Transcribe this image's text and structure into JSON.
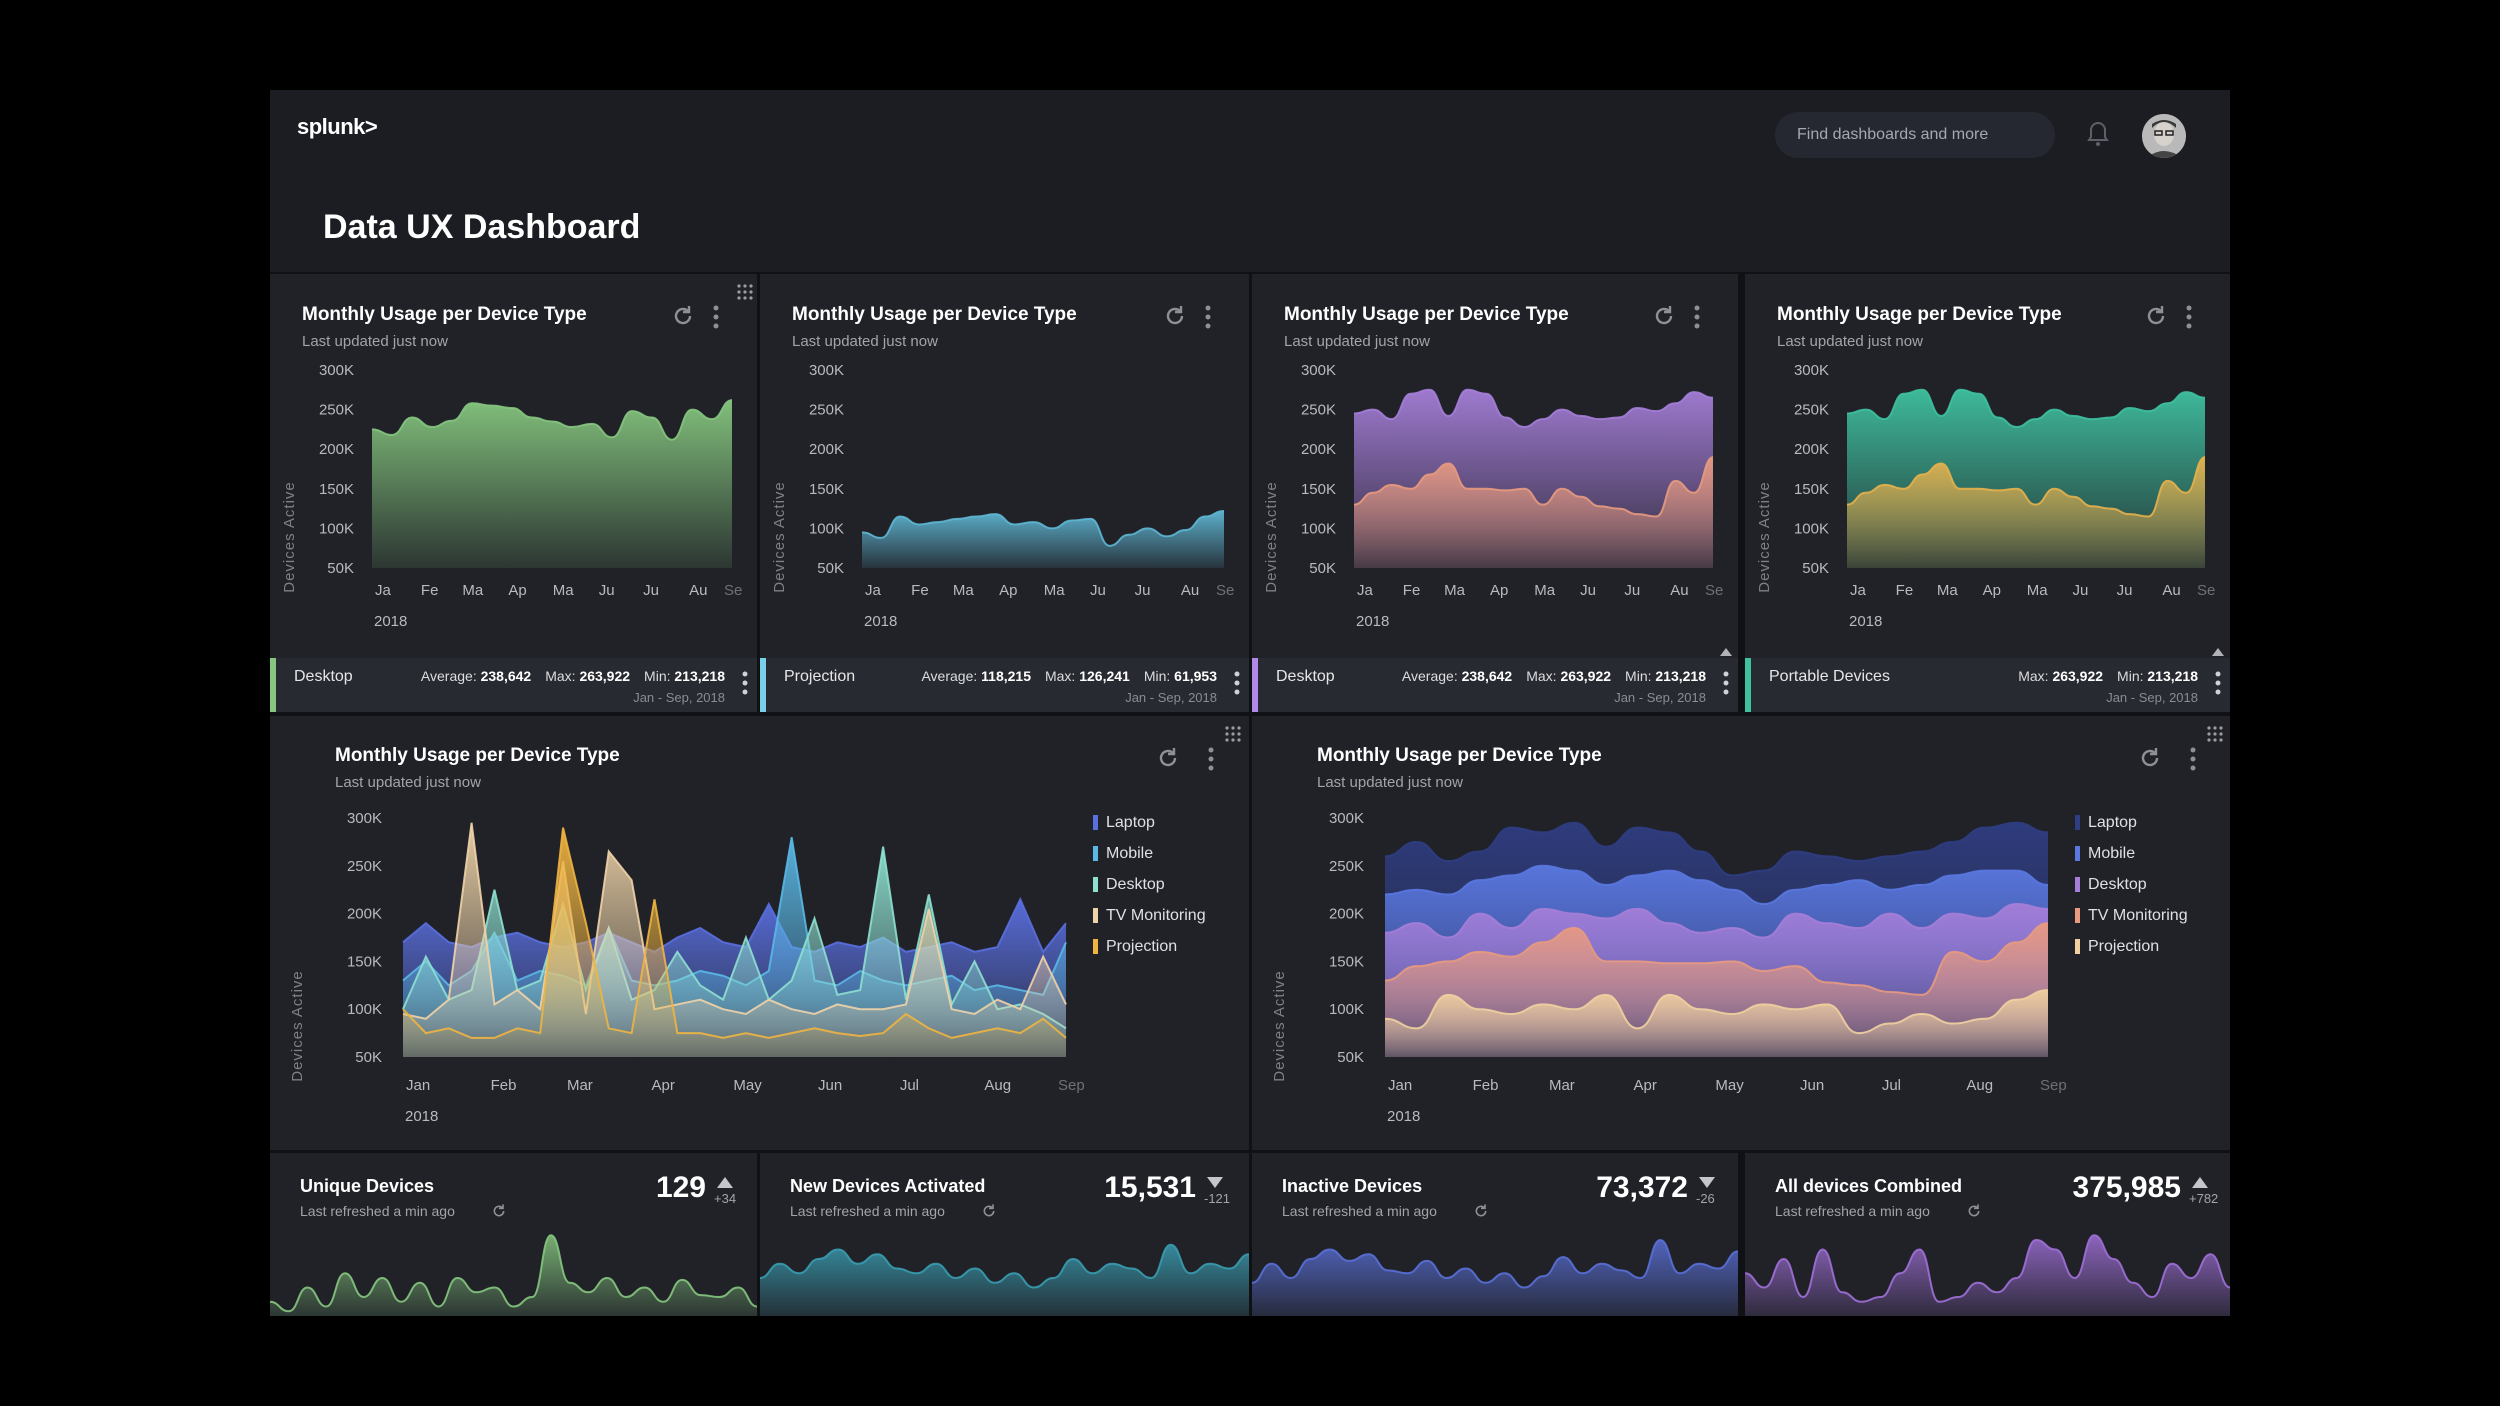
{
  "header": {
    "logo": "splunk>",
    "search_placeholder": "Find dashboards and more",
    "title": "Data UX Dashboard"
  },
  "axis": {
    "ylabel": "Devices Active",
    "yticks": [
      "300K",
      "250K",
      "200K",
      "150K",
      "100K",
      "50K"
    ],
    "ytick_values": [
      300,
      250,
      200,
      150,
      100,
      50
    ],
    "xticks_short": [
      "Ja",
      "Fe",
      "Ma",
      "Ap",
      "Ma",
      "Ju",
      "Ju",
      "Au",
      "Se"
    ],
    "xticks_long": [
      "Jan",
      "Feb",
      "Mar",
      "Apr",
      "May",
      "Jun",
      "Jul",
      "Aug",
      "Sep"
    ],
    "year": "2018"
  },
  "panels_top": [
    {
      "title": "Monthly Usage per Device Type",
      "subtitle": "Last updated just now",
      "footer": {
        "label": "Desktop",
        "color": "#86c77f",
        "stats": [
          {
            "label": "Average:",
            "value": "238,642"
          },
          {
            "label": "Max:",
            "value": "263,922"
          },
          {
            "label": "Min:",
            "value": "213,218"
          }
        ],
        "range": "Jan - Sep, 2018"
      }
    },
    {
      "title": "Monthly Usage per Device Type",
      "subtitle": "Last updated just now",
      "footer": {
        "label": "Projection",
        "color": "#7ad0e8",
        "stats": [
          {
            "label": "Average:",
            "value": "118,215"
          },
          {
            "label": "Max:",
            "value": "126,241"
          },
          {
            "label": "Min:",
            "value": "61,953"
          }
        ],
        "range": "Jan - Sep, 2018"
      }
    },
    {
      "title": "Monthly Usage per Device Type",
      "subtitle": "Last updated just now",
      "footer": {
        "label": "Desktop",
        "color": "#b08ae8",
        "stats": [
          {
            "label": "Average:",
            "value": "238,642"
          },
          {
            "label": "Max:",
            "value": "263,922"
          },
          {
            "label": "Min:",
            "value": "213,218"
          }
        ],
        "range": "Jan - Sep, 2018"
      }
    },
    {
      "title": "Monthly Usage per Device Type",
      "subtitle": "Last updated just now",
      "footer": {
        "label": "Portable Devices",
        "color": "#3fc1a0",
        "stats": [
          {
            "label": "Max:",
            "value": "263,922"
          },
          {
            "label": "Min:",
            "value": "213,218"
          }
        ],
        "range": "Jan - Sep, 2018"
      }
    }
  ],
  "panels_mid": [
    {
      "title": "Monthly Usage per Device Type",
      "subtitle": "Last updated just now"
    },
    {
      "title": "Monthly Usage per Device Type",
      "subtitle": "Last updated just now"
    }
  ],
  "kpis": [
    {
      "title": "Unique Devices",
      "subtitle": "Last refreshed a min ago",
      "value": "129",
      "delta": "+34",
      "direction": "up",
      "color": "#86c77f"
    },
    {
      "title": "New Devices Activated",
      "subtitle": "Last refreshed a min ago",
      "value": "15,531",
      "delta": "-121",
      "direction": "down",
      "color": "#3a9cb0"
    },
    {
      "title": "Inactive Devices",
      "subtitle": "Last refreshed a min ago",
      "value": "73,372",
      "delta": "-26",
      "direction": "down",
      "color": "#5a70d8"
    },
    {
      "title": "All devices Combined",
      "subtitle": "Last refreshed a min ago",
      "value": "375,985",
      "delta": "+782",
      "direction": "up",
      "color": "#a070d8"
    }
  ],
  "chart_data": [
    {
      "type": "area",
      "ylabel": "Devices Active",
      "ylim": [
        50,
        300
      ],
      "x": "Jan - Sep 2018",
      "series": [
        {
          "color": "#86c77f",
          "values": [
            225,
            218,
            240,
            228,
            236,
            258,
            255,
            252,
            240,
            235,
            228,
            232,
            215,
            248,
            240,
            212,
            250,
            238,
            262
          ]
        }
      ]
    },
    {
      "type": "area",
      "ylabel": "Devices Active",
      "ylim": [
        50,
        300
      ],
      "x": "Jan - Sep 2018",
      "series": [
        {
          "color": "#5fb7d4",
          "values": [
            95,
            88,
            115,
            105,
            108,
            112,
            115,
            118,
            105,
            108,
            100,
            110,
            112,
            78,
            92,
            100,
            90,
            98,
            115,
            122
          ]
        }
      ]
    },
    {
      "type": "area",
      "ylabel": "Devices Active",
      "ylim": [
        50,
        300
      ],
      "x": "Jan - Sep 2018",
      "series": [
        {
          "color": "#a57ed8",
          "values": [
            245,
            250,
            238,
            270,
            275,
            242,
            275,
            270,
            240,
            228,
            238,
            250,
            242,
            238,
            240,
            252,
            248,
            258,
            272,
            265
          ]
        },
        {
          "color": "#e89a80",
          "values": [
            130,
            145,
            155,
            150,
            168,
            182,
            150,
            150,
            148,
            150,
            130,
            150,
            140,
            128,
            125,
            118,
            115,
            160,
            145,
            190
          ]
        }
      ]
    },
    {
      "type": "area",
      "ylabel": "Devices Active",
      "ylim": [
        50,
        300
      ],
      "x": "Jan - Sep 2018",
      "series": [
        {
          "color": "#3fc1a0",
          "values": [
            245,
            250,
            238,
            270,
            275,
            242,
            275,
            270,
            240,
            228,
            238,
            250,
            242,
            238,
            240,
            252,
            248,
            258,
            272,
            265
          ]
        },
        {
          "color": "#e6b14d",
          "values": [
            130,
            145,
            155,
            150,
            168,
            182,
            150,
            150,
            148,
            150,
            130,
            150,
            140,
            128,
            125,
            118,
            115,
            160,
            145,
            190
          ]
        }
      ]
    },
    {
      "type": "area",
      "ylabel": "Devices Active",
      "ylim": [
        50,
        300
      ],
      "legend": "right",
      "series": [
        {
          "name": "Laptop",
          "color": "#5a6fe0",
          "values": [
            170,
            190,
            170,
            165,
            175,
            180,
            170,
            165,
            170,
            180,
            170,
            160,
            175,
            185,
            170,
            165,
            210,
            165,
            160,
            170,
            165,
            175,
            160,
            165,
            170,
            160,
            165,
            215,
            160,
            190
          ]
        },
        {
          "name": "Mobile",
          "color": "#5ab8e6",
          "values": [
            130,
            150,
            125,
            140,
            180,
            130,
            140,
            135,
            125,
            185,
            130,
            125,
            130,
            140,
            135,
            125,
            140,
            280,
            130,
            125,
            140,
            130,
            125,
            130,
            135,
            120,
            125,
            120,
            115,
            170
          ]
        },
        {
          "name": "Desktop",
          "color": "#8ee0d0",
          "values": [
            100,
            155,
            110,
            120,
            225,
            120,
            130,
            210,
            120,
            185,
            110,
            120,
            160,
            125,
            110,
            175,
            110,
            130,
            195,
            115,
            120,
            270,
            110,
            220,
            105,
            150,
            100,
            105,
            95,
            80
          ]
        },
        {
          "name": "TV Monitoring",
          "color": "#efd3a8",
          "values": [
            95,
            90,
            110,
            295,
            105,
            120,
            100,
            255,
            95,
            265,
            235,
            100,
            105,
            110,
            100,
            95,
            110,
            100,
            95,
            105,
            100,
            100,
            105,
            205,
            100,
            95,
            110,
            100,
            155,
            105
          ]
        },
        {
          "name": "Projection",
          "color": "#f0b440",
          "values": [
            100,
            75,
            80,
            70,
            70,
            80,
            75,
            290,
            190,
            80,
            75,
            215,
            75,
            75,
            70,
            75,
            70,
            75,
            80,
            75,
            72,
            75,
            95,
            80,
            70,
            75,
            80,
            75,
            90,
            70
          ]
        }
      ]
    },
    {
      "type": "area",
      "ylabel": "Devices Active",
      "ylim": [
        50,
        300
      ],
      "legend": "right",
      "series": [
        {
          "name": "Laptop",
          "color": "#2f3d82",
          "values": [
            260,
            275,
            255,
            265,
            290,
            285,
            295,
            270,
            290,
            285,
            265,
            240,
            245,
            265,
            260,
            255,
            260,
            265,
            275,
            290,
            295,
            285
          ]
        },
        {
          "name": "Mobile",
          "color": "#5a78e0",
          "values": [
            220,
            225,
            220,
            235,
            240,
            250,
            245,
            230,
            240,
            245,
            235,
            225,
            210,
            225,
            230,
            235,
            225,
            230,
            240,
            245,
            245,
            230
          ]
        },
        {
          "name": "Desktop",
          "color": "#a57ed8",
          "values": [
            180,
            190,
            175,
            200,
            185,
            205,
            200,
            195,
            205,
            190,
            180,
            185,
            175,
            200,
            190,
            185,
            200,
            185,
            200,
            195,
            210,
            205
          ]
        },
        {
          "name": "TV Monitoring",
          "color": "#e89a80",
          "values": [
            130,
            145,
            150,
            160,
            155,
            170,
            185,
            150,
            150,
            148,
            148,
            150,
            140,
            145,
            128,
            125,
            118,
            115,
            160,
            150,
            170,
            190
          ]
        },
        {
          "name": "Projection",
          "color": "#f0d0a0",
          "values": [
            90,
            80,
            115,
            100,
            95,
            105,
            100,
            115,
            80,
            115,
            100,
            95,
            105,
            100,
            105,
            75,
            85,
            95,
            85,
            90,
            110,
            120
          ]
        }
      ]
    },
    {
      "type": "area",
      "series": [
        {
          "color": "#86c77f",
          "values": [
            15,
            5,
            30,
            10,
            45,
            20,
            40,
            15,
            35,
            10,
            40,
            25,
            30,
            10,
            20,
            85,
            35,
            25,
            40,
            20,
            30,
            15,
            38,
            22,
            20,
            30,
            10
          ]
        }
      ]
    },
    {
      "type": "area",
      "series": [
        {
          "color": "#3a9cb0",
          "values": [
            40,
            55,
            45,
            60,
            70,
            55,
            65,
            50,
            45,
            55,
            40,
            50,
            35,
            45,
            30,
            40,
            60,
            45,
            55,
            50,
            40,
            75,
            45,
            55,
            50,
            65
          ]
        }
      ]
    },
    {
      "type": "area",
      "series": [
        {
          "color": "#5a70d8",
          "values": [
            35,
            55,
            40,
            60,
            70,
            58,
            65,
            48,
            45,
            58,
            40,
            50,
            35,
            45,
            30,
            42,
            62,
            45,
            55,
            48,
            40,
            80,
            45,
            55,
            50,
            68
          ]
        }
      ]
    },
    {
      "type": "area",
      "series": [
        {
          "color": "#a070d8",
          "values": [
            45,
            30,
            60,
            20,
            70,
            25,
            15,
            20,
            45,
            70,
            15,
            20,
            35,
            25,
            40,
            80,
            70,
            40,
            85,
            60,
            35,
            20,
            55,
            40,
            65,
            30
          ]
        }
      ]
    }
  ]
}
